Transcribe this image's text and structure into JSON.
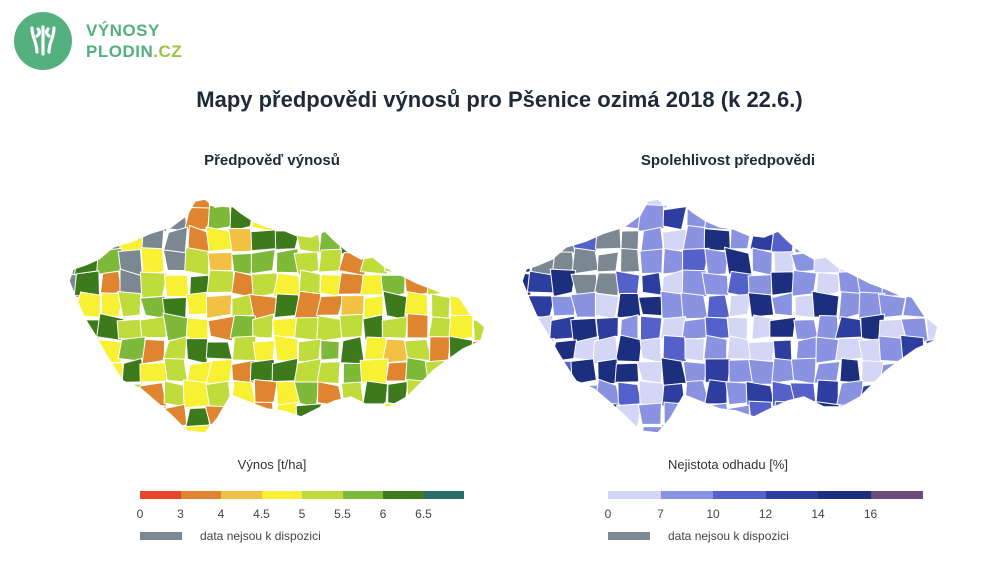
{
  "logo": {
    "line1": "VÝNOSY",
    "line2": "PLODIN",
    "tld": ".CZ"
  },
  "title": "Mapy předpovědi výnosů pro Pšenice ozimá 2018 (k 22.6.)",
  "maps": {
    "left": {
      "subtitle": "Předpověď výnosů",
      "legend_title": "Výnos [t/ha]",
      "legend_colors": [
        "#e5462c",
        "#e0852f",
        "#f2c043",
        "#f7f033",
        "#bfdc3c",
        "#7fb93a",
        "#3d7a1c",
        "#2a6e6a"
      ],
      "ticks": [
        "0",
        "3",
        "4",
        "4.5",
        "5",
        "5.5",
        "6",
        "6.5"
      ],
      "na_label": "data nejsou k dispozici",
      "na_color": "#7b8892"
    },
    "right": {
      "subtitle": "Spolehlivost předpovědi",
      "legend_title": "Nejistota odhadu [%]",
      "legend_colors": [
        "#d4d6f6",
        "#8a92e2",
        "#5561cb",
        "#2d3ea0",
        "#1c2e7e",
        "#6b4c7a"
      ],
      "ticks": [
        "0",
        "7",
        "10",
        "12",
        "14",
        "16"
      ],
      "na_label": "data nejsou k dispozici",
      "na_color": "#7b8892"
    }
  }
}
